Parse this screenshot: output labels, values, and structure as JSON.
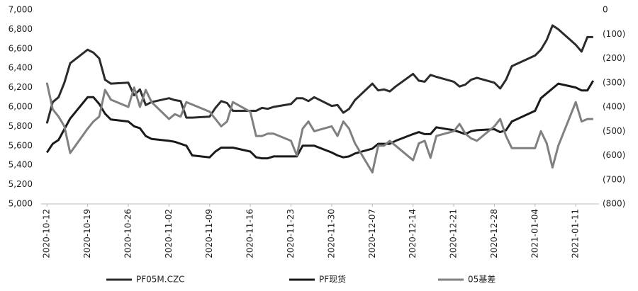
{
  "chart_data": {
    "type": "line",
    "x": [
      "2020-10-12",
      "2020-10-13",
      "2020-10-14",
      "2020-10-15",
      "2020-10-16",
      "2020-10-19",
      "2020-10-20",
      "2020-10-21",
      "2020-10-22",
      "2020-10-23",
      "2020-10-26",
      "2020-10-27",
      "2020-10-28",
      "2020-10-29",
      "2020-10-30",
      "2020-11-02",
      "2020-11-03",
      "2020-11-04",
      "2020-11-05",
      "2020-11-06",
      "2020-11-09",
      "2020-11-10",
      "2020-11-11",
      "2020-11-12",
      "2020-11-13",
      "2020-11-16",
      "2020-11-17",
      "2020-11-18",
      "2020-11-19",
      "2020-11-20",
      "2020-11-23",
      "2020-11-24",
      "2020-11-25",
      "2020-11-26",
      "2020-11-27",
      "2020-11-30",
      "2020-12-01",
      "2020-12-02",
      "2020-12-03",
      "2020-12-04",
      "2020-12-07",
      "2020-12-08",
      "2020-12-09",
      "2020-12-10",
      "2020-12-11",
      "2020-12-14",
      "2020-12-15",
      "2020-12-16",
      "2020-12-17",
      "2020-12-18",
      "2020-12-21",
      "2020-12-22",
      "2020-12-23",
      "2020-12-24",
      "2020-12-25",
      "2020-12-28",
      "2020-12-29",
      "2020-12-30",
      "2020-12-31",
      "2021-01-04",
      "2021-01-05",
      "2021-01-06",
      "2021-01-07",
      "2021-01-08",
      "2021-01-11",
      "2021-01-12",
      "2021-01-13",
      "2021-01-14"
    ],
    "xlim": [
      "2020-10-11",
      "2021-01-15"
    ],
    "xticks": [
      "2020-10-12",
      "2020-10-19",
      "2020-10-26",
      "2020-11-02",
      "2020-11-09",
      "2020-11-16",
      "2020-11-23",
      "2020-11-30",
      "2020-12-07",
      "2020-12-14",
      "2020-12-21",
      "2020-12-28",
      "2021-01-04",
      "2021-01-11"
    ],
    "ylim": [
      5000,
      7000
    ],
    "yticks": [
      {
        "value": 5000,
        "label": "5,000"
      },
      {
        "value": 5200,
        "label": "5,200"
      },
      {
        "value": 5400,
        "label": "5,400"
      },
      {
        "value": 5600,
        "label": "5,600"
      },
      {
        "value": 5800,
        "label": "5,800"
      },
      {
        "value": 6000,
        "label": "6,000"
      },
      {
        "value": 6200,
        "label": "6,200"
      },
      {
        "value": 6400,
        "label": "6,400"
      },
      {
        "value": 6600,
        "label": "6,600"
      },
      {
        "value": 6800,
        "label": "6,800"
      },
      {
        "value": 7000,
        "label": "7,000"
      }
    ],
    "y2lim": [
      -800,
      0
    ],
    "y2ticks": [
      0,
      {
        "value": -100,
        "label": "(100)"
      },
      {
        "value": -200,
        "label": "(200)"
      },
      {
        "value": -300,
        "label": "(300)"
      },
      {
        "value": -400,
        "label": "(400)"
      },
      {
        "value": -500,
        "label": "(500)"
      },
      {
        "value": -600,
        "label": "(600)"
      },
      {
        "value": -700,
        "label": "(700)"
      },
      {
        "value": -800,
        "label": "(800)"
      }
    ],
    "series": [
      {
        "name": "PF05M.CZC",
        "color": "#2b2b2b",
        "values": [
          5830,
          6050,
          6100,
          6250,
          6450,
          6590,
          6560,
          6500,
          6280,
          6240,
          6250,
          6120,
          6180,
          6020,
          6050,
          6090,
          6070,
          6060,
          5890,
          5890,
          5900,
          5990,
          6060,
          6040,
          5960,
          5960,
          5960,
          5990,
          5980,
          6000,
          6030,
          6090,
          6090,
          6060,
          6100,
          6010,
          6020,
          5940,
          5980,
          6070,
          6240,
          6170,
          6180,
          6160,
          6210,
          6340,
          6270,
          6260,
          6330,
          6310,
          6260,
          6210,
          6230,
          6280,
          6300,
          6250,
          6190,
          6280,
          6420,
          6530,
          6590,
          6690,
          6840,
          6800,
          6640,
          6570,
          6720,
          6720
        ]
      },
      {
        "name": "PF现货",
        "color": "#1a1a1a",
        "values": [
          5530,
          5620,
          5660,
          5770,
          5880,
          6100,
          6100,
          6030,
          5930,
          5870,
          5850,
          5800,
          5780,
          5700,
          5670,
          5650,
          5640,
          5620,
          5600,
          5500,
          5480,
          5540,
          5580,
          5580,
          5580,
          5540,
          5480,
          5470,
          5470,
          5490,
          5490,
          5490,
          5600,
          5600,
          5600,
          5530,
          5500,
          5480,
          5490,
          5520,
          5570,
          5620,
          5620,
          5620,
          5650,
          5720,
          5740,
          5720,
          5720,
          5790,
          5760,
          5740,
          5720,
          5750,
          5760,
          5770,
          5740,
          5760,
          5850,
          5960,
          6090,
          6140,
          6190,
          6240,
          6200,
          6170,
          6170,
          6270
        ]
      },
      {
        "name": "05基差",
        "color": "#808080",
        "axis": "y2",
        "values": [
          -300,
          -410,
          -440,
          -480,
          -590,
          -490,
          -460,
          -440,
          -330,
          -370,
          -400,
          -320,
          -400,
          -330,
          -380,
          -450,
          -430,
          -440,
          -380,
          -390,
          -420,
          -450,
          -480,
          -460,
          -380,
          -420,
          -520,
          -520,
          -510,
          -510,
          -540,
          -600,
          -490,
          -460,
          -500,
          -480,
          -520,
          -460,
          -490,
          -550,
          -670,
          -560,
          -560,
          -540,
          -560,
          -620,
          -550,
          -540,
          -610,
          -520,
          -500,
          -470,
          -510,
          -530,
          -540,
          -480,
          -450,
          -520,
          -570,
          -570,
          -500,
          -550,
          -650,
          -560,
          -380,
          -460,
          -450,
          -450
        ]
      }
    ]
  }
}
